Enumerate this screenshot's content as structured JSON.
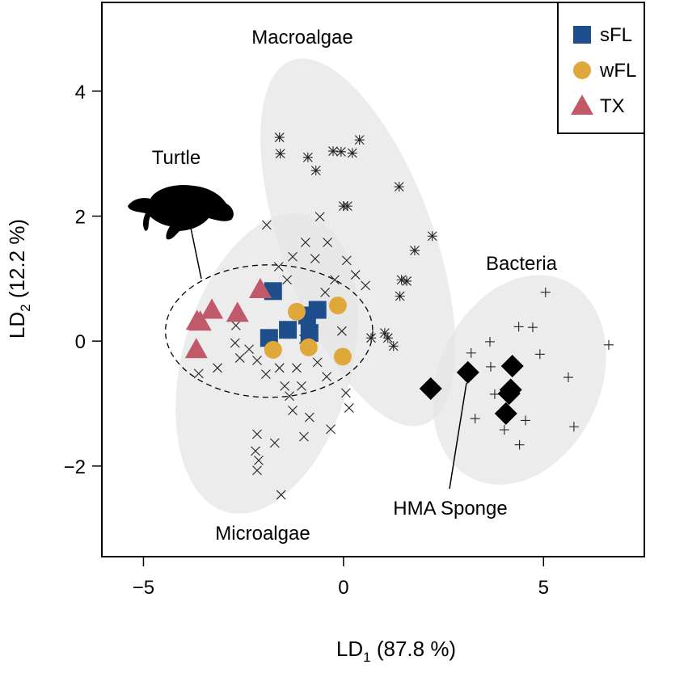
{
  "chart_data": {
    "type": "scatter",
    "xlabel": "LD",
    "xlabel_subscript": "1",
    "xlabel_suffix": " (87.8 %)",
    "ylabel": "LD",
    "ylabel_subscript": "2",
    "ylabel_suffix": " (12.2 %)",
    "xlim": [
      -6.04,
      7.52
    ],
    "ylim": [
      -3.45,
      5.42
    ],
    "xticks": [
      {
        "value": -5,
        "label": "−5"
      },
      0,
      5
    ],
    "yticks": [
      {
        "value": -2,
        "label": "−2"
      },
      0,
      2,
      4
    ],
    "ellipses": [
      {
        "label": "Macroalgae",
        "cx": 0.36,
        "cy": 1.58,
        "rx": 1.9,
        "ry": 3.1,
        "angle": -20,
        "color": "#e6e6e6"
      },
      {
        "label": "Microalgae",
        "cx": -1.92,
        "cy": -0.36,
        "rx": 2.12,
        "ry": 2.46,
        "angle": 15,
        "color": "#e6e6e6"
      },
      {
        "label": "Bacteria",
        "cx": 4.4,
        "cy": -0.62,
        "rx": 2.02,
        "ry": 1.75,
        "angle": 25,
        "color": "#e6e6e6"
      }
    ],
    "annotations": [
      {
        "label": "Turtle",
        "cx": -1.86,
        "cy": 0.16,
        "rx": 2.59,
        "ry": 1.06,
        "style": "dashed"
      },
      {
        "label": "HMA Sponge"
      }
    ],
    "series": [
      {
        "marker": "asterisk",
        "color": "#222222",
        "x": [
          -1.6,
          -1.58,
          -0.89,
          -0.69,
          -0.26,
          -0.06,
          0.22,
          0.4,
          0,
          0.1,
          1.39,
          2.22,
          1.78,
          1.58,
          1.41,
          1.45,
          0.69,
          1.03,
          1.11,
          1.25
        ],
        "y": [
          3.26,
          3.0,
          2.94,
          2.73,
          3.04,
          3.03,
          3.01,
          3.22,
          2.16,
          2.16,
          2.47,
          1.68,
          1.45,
          0.96,
          0.72,
          0.98,
          0.05,
          0.13,
          0.05,
          -0.08
        ]
      },
      {
        "marker": "cross",
        "color": "#222222",
        "x": [
          -1.92,
          -0.59,
          -0.95,
          -0.4,
          0.08,
          0.3,
          -0.22,
          -0.71,
          -1.27,
          -1.62,
          -1.41,
          0.55,
          -0.46,
          -2.71,
          -2.59,
          -3.15,
          -2.36,
          -2.16,
          -1.94,
          -1.6,
          -1.47,
          -1.35,
          -1.17,
          -1.05,
          -1.27,
          -0.85,
          -0.99,
          -0.32,
          0.14,
          0.06,
          -0.42,
          -0.65,
          -2.16,
          -2.2,
          -2.12,
          -2.16,
          -1.72,
          -1.56,
          -3.62,
          -0.99,
          -0.04,
          -2.69
        ],
        "y": [
          1.86,
          1.99,
          1.58,
          1.58,
          1.29,
          1.06,
          0.98,
          1.32,
          1.35,
          1.19,
          0.98,
          0.89,
          0.78,
          -0.03,
          -0.27,
          -0.43,
          -0.13,
          -0.31,
          -0.53,
          -0.43,
          -0.72,
          -0.88,
          -0.43,
          -0.72,
          -1.11,
          -1.22,
          -1.53,
          -1.41,
          -1.07,
          -0.83,
          -0.57,
          -0.34,
          -1.49,
          -1.76,
          -1.91,
          -2.07,
          -1.63,
          -2.46,
          -0.52,
          0.03,
          0.16,
          0.25
        ]
      },
      {
        "marker": "plus",
        "color": "#222222",
        "x": [
          5.05,
          4.38,
          4.73,
          6.63,
          4.91,
          3.66,
          3.19,
          3.68,
          5.62,
          3.78,
          3.29,
          4.55,
          4.02,
          5.76,
          4.4,
          4.12
        ],
        "y": [
          0.78,
          0.23,
          0.22,
          -0.06,
          -0.21,
          -0.01,
          -0.19,
          -0.41,
          -0.58,
          -0.85,
          -1.24,
          -1.27,
          -1.42,
          -1.37,
          -1.66,
          -0.76
        ]
      },
      {
        "marker": "diamond",
        "color": "#000000",
        "x": [
          2.18,
          3.11,
          4.22,
          4.18,
          4.14,
          4.06
        ],
        "y": [
          -0.76,
          -0.5,
          -0.4,
          -0.78,
          -0.84,
          -1.16
        ]
      },
      {
        "name": "sFL",
        "marker": "square",
        "color": "#1f4e8c",
        "x": [
          -1.76,
          -1.86,
          -1.39,
          -0.91,
          -0.65,
          -0.85
        ],
        "y": [
          0.8,
          0.05,
          0.18,
          0.41,
          0.5,
          0.13
        ]
      },
      {
        "name": "wFL",
        "marker": "circle",
        "color": "#e0a83a",
        "x": [
          -1.76,
          -1.17,
          -0.87,
          -0.14,
          -0.02
        ],
        "y": [
          -0.14,
          0.47,
          -0.1,
          0.57,
          -0.25
        ]
      },
      {
        "name": "TX",
        "marker": "triangle",
        "color": "#c05a6a",
        "x": [
          -2.08,
          -3.29,
          -2.65,
          -3.66,
          -3.58,
          -3.68
        ],
        "y": [
          0.83,
          0.5,
          0.45,
          0.32,
          0.31,
          -0.13
        ]
      }
    ],
    "legend": "top-right"
  }
}
